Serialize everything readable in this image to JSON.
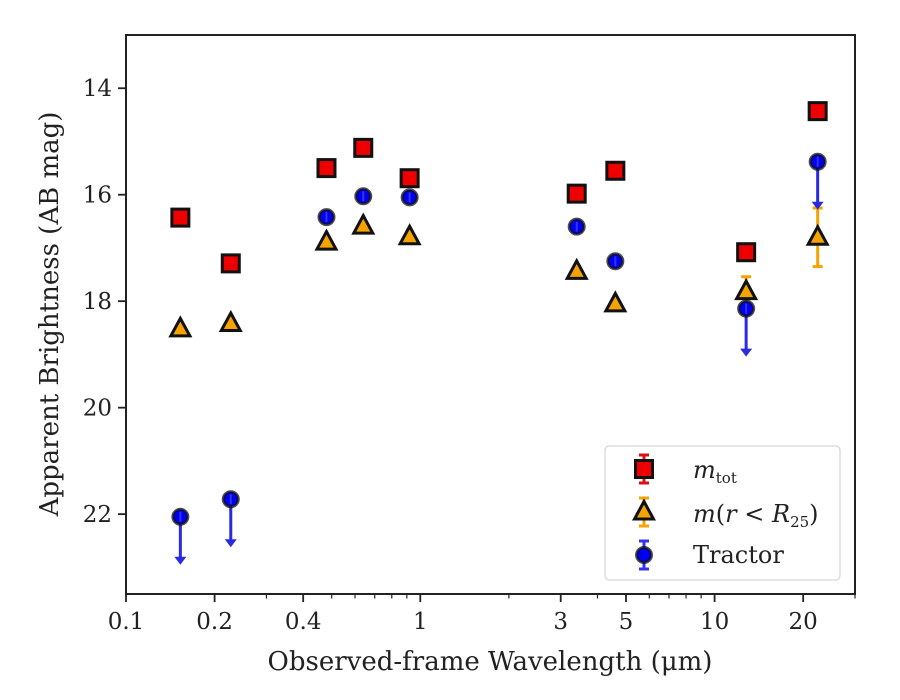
{
  "chart_data": {
    "type": "scatter",
    "xlabel": "Observed-frame Wavelength (μm)",
    "ylabel": "Apparent Brightness (AB mag)",
    "xscale": "log",
    "xlim": [
      0.1,
      30
    ],
    "ylim": [
      23.5,
      13
    ],
    "y_inverted": true,
    "grid": false,
    "legend_position": "lower-right",
    "x_ticks": [
      {
        "value": 0.1,
        "label": "0.1"
      },
      {
        "value": 0.2,
        "label": "0.2"
      },
      {
        "value": 0.4,
        "label": "0.4"
      },
      {
        "value": 1,
        "label": "1"
      },
      {
        "value": 3,
        "label": "3"
      },
      {
        "value": 5,
        "label": "5"
      },
      {
        "value": 10,
        "label": "10"
      },
      {
        "value": 20,
        "label": "20"
      }
    ],
    "y_ticks": [
      {
        "value": 14,
        "label": "14"
      },
      {
        "value": 16,
        "label": "16"
      },
      {
        "value": 18,
        "label": "18"
      },
      {
        "value": 20,
        "label": "20"
      },
      {
        "value": 22,
        "label": "22"
      }
    ],
    "series": [
      {
        "key": "mtot",
        "legend_label": "m_tot",
        "marker": "square",
        "color": "#ee0000",
        "errcolor": "#dd1111",
        "points": [
          {
            "x": 0.153,
            "y": 16.43
          },
          {
            "x": 0.227,
            "y": 17.29
          },
          {
            "x": 0.48,
            "y": 15.5
          },
          {
            "x": 0.64,
            "y": 15.12
          },
          {
            "x": 0.92,
            "y": 15.69
          },
          {
            "x": 3.4,
            "y": 15.98
          },
          {
            "x": 4.6,
            "y": 15.55
          },
          {
            "x": 12.8,
            "y": 17.08
          },
          {
            "x": 22.4,
            "y": 14.43
          }
        ]
      },
      {
        "key": "mr25",
        "legend_label": "m(r < R25)",
        "marker": "triangle",
        "color": "#f5a300",
        "errcolor": "#f5a300",
        "points": [
          {
            "x": 0.153,
            "y": 18.52
          },
          {
            "x": 0.227,
            "y": 18.42
          },
          {
            "x": 0.48,
            "y": 16.89
          },
          {
            "x": 0.64,
            "y": 16.59
          },
          {
            "x": 0.92,
            "y": 16.79
          },
          {
            "x": 3.4,
            "y": 17.44
          },
          {
            "x": 4.6,
            "y": 18.05
          },
          {
            "x": 12.8,
            "y": 17.82,
            "yerr": 0.28
          },
          {
            "x": 22.4,
            "y": 16.8,
            "yerr": 0.55
          }
        ]
      },
      {
        "key": "tractor",
        "legend_label": "Tractor",
        "marker": "circle",
        "color": "#0000ee",
        "errcolor": "#3333ee",
        "points": [
          {
            "x": 0.153,
            "y": 22.05,
            "upper_limit": true
          },
          {
            "x": 0.227,
            "y": 21.72,
            "upper_limit": true
          },
          {
            "x": 0.48,
            "y": 16.42
          },
          {
            "x": 0.64,
            "y": 16.03
          },
          {
            "x": 0.92,
            "y": 16.05
          },
          {
            "x": 3.4,
            "y": 16.6
          },
          {
            "x": 4.6,
            "y": 17.25
          },
          {
            "x": 12.8,
            "y": 18.14,
            "upper_limit": true
          },
          {
            "x": 22.4,
            "y": 15.38,
            "upper_limit": true
          }
        ]
      }
    ]
  }
}
